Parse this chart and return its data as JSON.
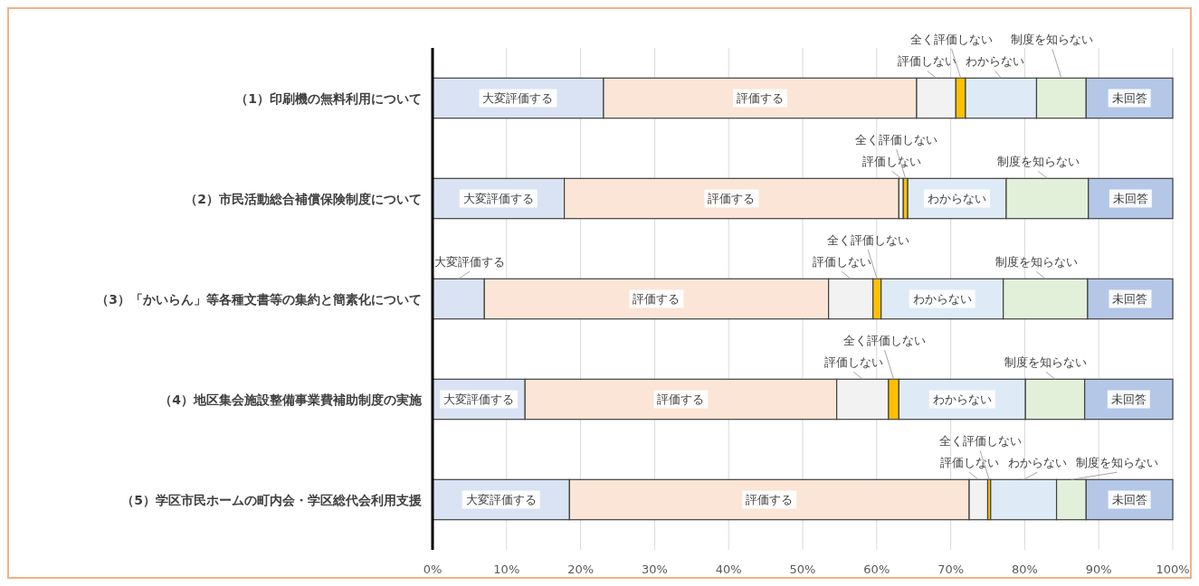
{
  "chart_data": {
    "type": "bar",
    "orientation": "horizontal",
    "stacked": true,
    "categories": [
      "（1）印刷機の無料利用について",
      "（2）市民活動総合補償保険制度について",
      "（3）「かいらん」等各種文書等の集約と簡素化について",
      "（4）地区集会施設整備事業費補助制度の実施",
      "（5）学区市民ホームの町内会・学区総代会利用支援"
    ],
    "series": [
      {
        "name": "大変評価する",
        "color": "#dae3f3",
        "values": [
          23.1,
          17.8,
          7.0,
          12.5,
          18.5
        ]
      },
      {
        "name": "評価する",
        "color": "#fbe5d6",
        "values": [
          42.3,
          45.2,
          46.5,
          42.1,
          54.0
        ]
      },
      {
        "name": "評価しない",
        "color": "#f2f2f2",
        "values": [
          5.3,
          0.6,
          6.0,
          7.0,
          2.5
        ]
      },
      {
        "name": "全く評価しない",
        "color": "#ffc000",
        "values": [
          1.3,
          0.6,
          1.1,
          1.4,
          0.4
        ]
      },
      {
        "name": "わからない",
        "color": "#deebf7",
        "values": [
          9.6,
          13.3,
          16.5,
          17.1,
          8.9
        ]
      },
      {
        "name": "制度を知らない",
        "color": "#e2f0d9",
        "values": [
          6.7,
          11.1,
          11.4,
          8.0,
          4.0
        ]
      },
      {
        "name": "未回答",
        "color": "#b4c7e7",
        "values": [
          11.7,
          11.4,
          11.5,
          11.9,
          11.7
        ]
      }
    ],
    "xlim": [
      0,
      100
    ],
    "xticks": [
      {
        "value": 0,
        "label": "0%"
      },
      {
        "value": 10,
        "label": "10%"
      },
      {
        "value": 20,
        "label": "20%"
      },
      {
        "value": 30,
        "label": "30%"
      },
      {
        "value": 40,
        "label": "40%"
      },
      {
        "value": 50,
        "label": "50%"
      },
      {
        "value": 60,
        "label": "60%"
      },
      {
        "value": 70,
        "label": "70%"
      },
      {
        "value": 80,
        "label": "80%"
      },
      {
        "value": 90,
        "label": "90%"
      },
      {
        "value": 100,
        "label": "100%"
      }
    ],
    "grid": "x"
  }
}
